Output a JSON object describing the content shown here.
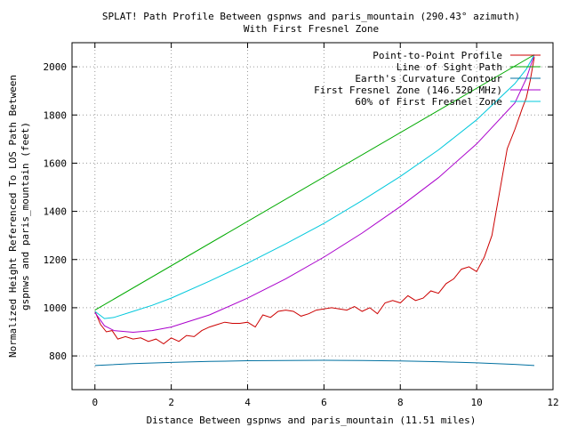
{
  "chart_data": {
    "type": "line",
    "title": "SPLAT! Path Profile Between gspnws and paris_mountain (290.43° azimuth)",
    "subtitle": "With First Fresnel Zone",
    "xlabel": "Distance Between gspnws and paris_mountain (11.51 miles)",
    "ylabel": [
      "Normalized Height Referenced To LOS Path Between",
      "gspnws and paris_mountain (feet)"
    ],
    "xlim": [
      -0.6,
      12
    ],
    "ylim": [
      660,
      2100
    ],
    "xticks": [
      0,
      2,
      4,
      6,
      8,
      10,
      12
    ],
    "yticks": [
      800,
      1000,
      1200,
      1400,
      1600,
      1800,
      2000
    ],
    "grid": true,
    "legend_position": "top-right",
    "series": [
      {
        "name": "Point-to-Point Profile",
        "color": "#cc0000",
        "x": [
          0,
          0.15,
          0.3,
          0.45,
          0.6,
          0.8,
          1.0,
          1.2,
          1.4,
          1.6,
          1.8,
          2.0,
          2.2,
          2.4,
          2.6,
          2.8,
          3.0,
          3.2,
          3.4,
          3.6,
          3.8,
          4.0,
          4.2,
          4.4,
          4.6,
          4.8,
          5.0,
          5.2,
          5.4,
          5.6,
          5.8,
          6.0,
          6.2,
          6.4,
          6.6,
          6.8,
          7.0,
          7.2,
          7.4,
          7.6,
          7.8,
          8.0,
          8.2,
          8.4,
          8.6,
          8.8,
          9.0,
          9.2,
          9.4,
          9.6,
          9.8,
          10.0,
          10.2,
          10.4,
          10.6,
          10.8,
          11.0,
          11.2,
          11.3,
          11.4,
          11.51
        ],
        "y": [
          985,
          930,
          900,
          905,
          870,
          880,
          870,
          875,
          860,
          870,
          850,
          875,
          860,
          885,
          880,
          905,
          920,
          930,
          940,
          935,
          935,
          940,
          920,
          970,
          960,
          985,
          990,
          985,
          965,
          975,
          990,
          995,
          1000,
          995,
          990,
          1005,
          985,
          1000,
          975,
          1020,
          1030,
          1020,
          1050,
          1030,
          1040,
          1070,
          1060,
          1100,
          1120,
          1160,
          1170,
          1150,
          1210,
          1300,
          1480,
          1660,
          1740,
          1830,
          1870,
          1940,
          2040
        ]
      },
      {
        "name": "Line of Sight Path",
        "color": "#00aa00",
        "x": [
          0,
          11.51
        ],
        "y": [
          990,
          2050
        ]
      },
      {
        "name": "Earth's Curvature Contour",
        "color": "#0070a0",
        "x": [
          0,
          1,
          2,
          3,
          4,
          5,
          6,
          7,
          8,
          9,
          10,
          11,
          11.51
        ],
        "y": [
          760,
          768,
          773,
          777,
          780,
          781,
          782,
          781,
          779,
          776,
          771,
          765,
          760
        ]
      },
      {
        "name": "First Fresnel Zone (146.520 MHz)",
        "color": "#aa00cc",
        "x": [
          0,
          0.25,
          0.5,
          1,
          1.5,
          2,
          3,
          4,
          5,
          6,
          7,
          8,
          9,
          10,
          11,
          11.3,
          11.51
        ],
        "y": [
          980,
          925,
          905,
          898,
          905,
          920,
          970,
          1040,
          1120,
          1210,
          1310,
          1420,
          1540,
          1680,
          1850,
          1950,
          2050
        ]
      },
      {
        "name": "60% of First Fresnel Zone",
        "color": "#00c8dc",
        "x": [
          0,
          0.25,
          0.5,
          1,
          1.5,
          2,
          3,
          4,
          5,
          6,
          7,
          8,
          9,
          10,
          11,
          11.3,
          11.51
        ],
        "y": [
          985,
          955,
          960,
          985,
          1010,
          1040,
          1110,
          1185,
          1265,
          1350,
          1445,
          1545,
          1655,
          1780,
          1930,
          1990,
          2050
        ]
      }
    ]
  }
}
